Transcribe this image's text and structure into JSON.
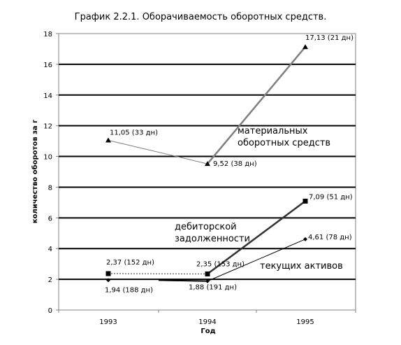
{
  "chart_data": {
    "type": "line",
    "title": "График 2.2.1.  Оборачиваемость оборотных средств.",
    "xlabel": "Год",
    "ylabel": "количество оборотов за г",
    "categories": [
      "1993",
      "1994",
      "1995"
    ],
    "ylim": [
      0,
      18
    ],
    "yticks": [
      0,
      2,
      4,
      6,
      8,
      10,
      12,
      14,
      16,
      18
    ],
    "grid": "horizontal",
    "series": [
      {
        "name": "материальных оборотных средств",
        "marker": "triangle",
        "color": "#7f7f7f",
        "values": [
          11.05,
          9.52,
          17.13
        ],
        "labels": [
          "11,05 (33 дн)",
          "9,52 (38 дн)",
          "17,13 (21 дн)"
        ]
      },
      {
        "name": "дебиторской задолженности",
        "marker": "square",
        "color": "#333333",
        "values": [
          2.37,
          2.35,
          7.09
        ],
        "labels": [
          "2,37 (152 дн)",
          "2,35 (153 дн)",
          "7,09 (51 дн)"
        ]
      },
      {
        "name": "текущих активов",
        "marker": "diamond",
        "color": "#000000",
        "values": [
          1.94,
          1.88,
          4.61
        ],
        "labels": [
          "1,94 (188 дн)",
          "1,88 (191 дн)",
          "4,61 (78 дн)"
        ]
      }
    ],
    "annotations": [
      [
        "материальных",
        "оборотных средств"
      ],
      [
        "дебиторской",
        "задолженности"
      ],
      [
        "текущих активов"
      ]
    ]
  }
}
